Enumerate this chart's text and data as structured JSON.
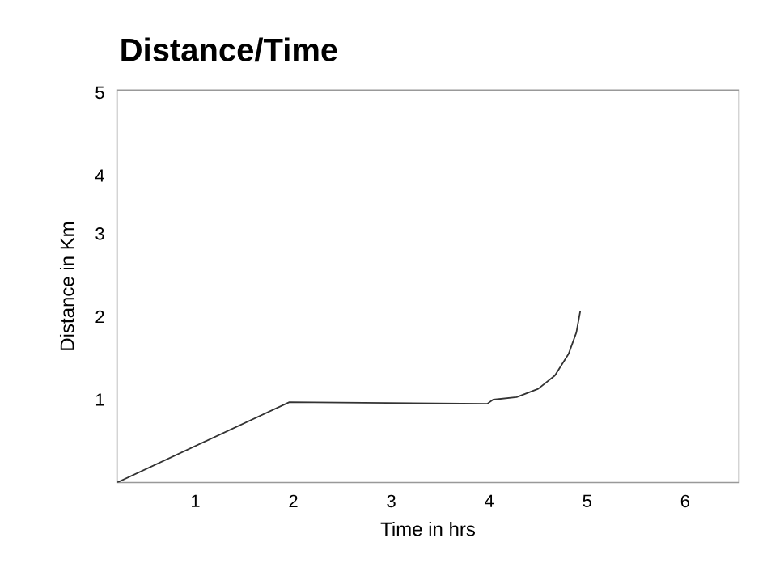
{
  "chart_data": {
    "type": "line",
    "title": "Distance/Time",
    "xlabel": "Time in hrs",
    "ylabel": "Distance in Km",
    "x": [
      0.2,
      1.96,
      3.98,
      4.04,
      4.28,
      4.5,
      4.67,
      4.81,
      4.89,
      4.93
    ],
    "values": [
      0,
      0.97,
      0.95,
      1.0,
      1.03,
      1.13,
      1.29,
      1.55,
      1.81,
      2.07
    ],
    "color": "#333333",
    "xlim": [
      0.2,
      6.55
    ],
    "ylim": [
      0,
      4.73
    ],
    "xticks": [
      1,
      2,
      3,
      4,
      5,
      6
    ],
    "yticks": [
      1,
      2,
      3,
      {
        "value": 3.7,
        "label": "4"
      },
      {
        "value": 4.7,
        "label": "5"
      }
    ]
  }
}
